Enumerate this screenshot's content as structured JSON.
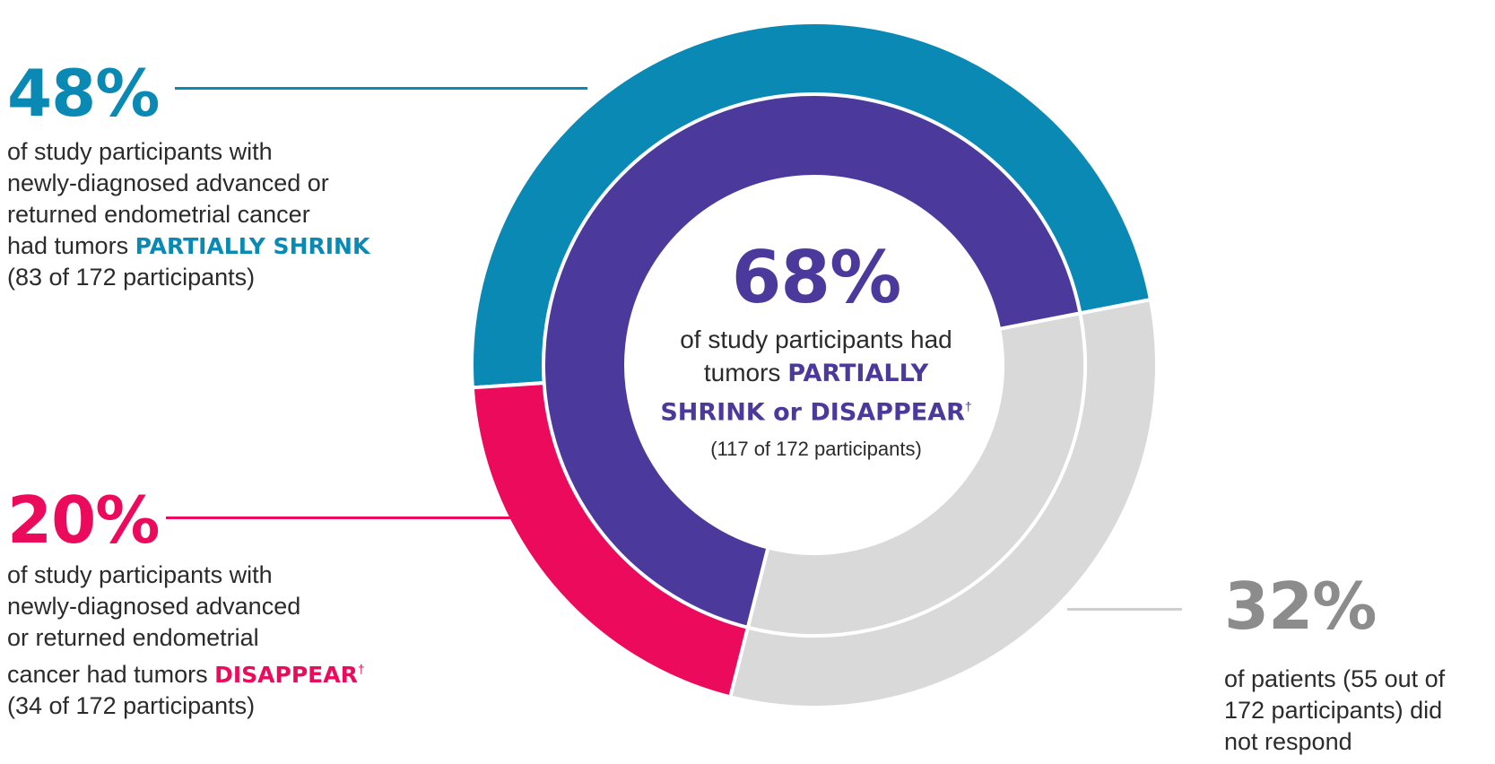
{
  "chart_data": {
    "type": "pie",
    "variant": "nested-donut",
    "outer_ring": [
      {
        "label": "PARTIALLY SHRINK",
        "percent": 48,
        "count": 83,
        "color": "#0989b4"
      },
      {
        "label": "DISAPPEAR",
        "percent": 20,
        "count": 34,
        "color": "#ec0a5c"
      },
      {
        "label": "did not respond",
        "percent": 32,
        "count": 55,
        "color": "#d9d9d9"
      }
    ],
    "inner_ring": [
      {
        "label": "PARTIALLY SHRINK or DISAPPEAR",
        "percent": 68,
        "count": 117,
        "color": "#4b3a9b"
      },
      {
        "label": "did not respond",
        "percent": 32,
        "count": 55,
        "color": "#d9d9d9"
      }
    ],
    "total": 172
  },
  "callouts": {
    "shrink": {
      "percent": "48%",
      "lines": [
        "of study participants with",
        "newly-diagnosed advanced or",
        "returned endometrial cancer"
      ],
      "lead": "had tumors ",
      "emphasis": "PARTIALLY SHRINK",
      "count": "(83 of 172 participants)"
    },
    "disappear": {
      "percent": "20%",
      "lines": [
        "of study participants with",
        "newly-diagnosed advanced",
        "or returned endometrial"
      ],
      "lead": "cancer had tumors ",
      "emphasis": "DISAPPEAR",
      "mark": "†",
      "count": "(34 of 172 participants)"
    },
    "no_response": {
      "percent": "32%",
      "lines": [
        "of patients (55 out of",
        "172 participants) did",
        "not respond"
      ]
    },
    "center": {
      "percent": "68%",
      "line1": "of study participants had",
      "lead": "tumors ",
      "emphasis1": "PARTIALLY",
      "emphasis2": "SHRINK or DISAPPEAR",
      "mark": "†",
      "count": "(117 of 172 participants)"
    }
  },
  "colors": {
    "teal": "#0989b4",
    "magenta": "#ec0a5c",
    "purple": "#4b3a9b",
    "gray": "#d9d9d9",
    "gray_text": "#8c8c8c",
    "leader_gray": "#cfcfcf"
  }
}
